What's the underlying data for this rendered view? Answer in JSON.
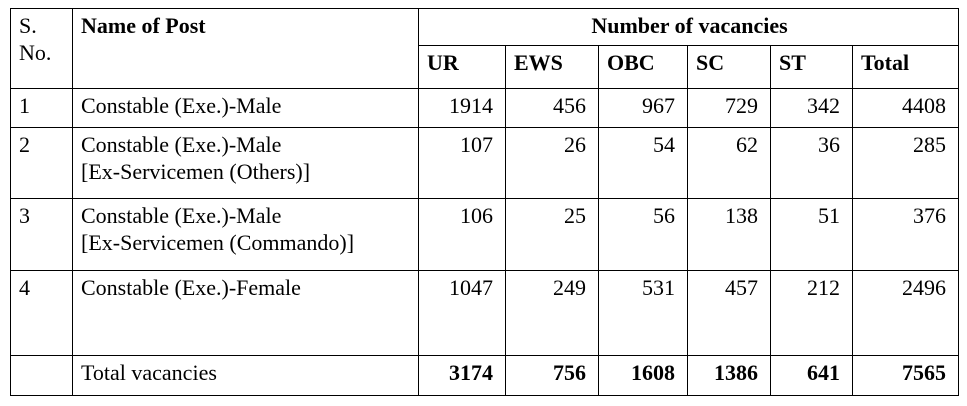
{
  "header": {
    "sno": "S. No.",
    "name": "Name of Post",
    "group": "Number of vacancies",
    "columns": [
      "UR",
      "EWS",
      "OBC",
      "SC",
      "ST",
      "Total"
    ]
  },
  "rows": [
    {
      "sno": "1",
      "name": [
        "Constable (Exe.)-Male"
      ],
      "values": [
        1914,
        456,
        967,
        729,
        342,
        4408
      ]
    },
    {
      "sno": "2",
      "name": [
        "Constable (Exe.)-Male",
        "[Ex-Servicemen (Others)]"
      ],
      "values": [
        107,
        26,
        54,
        62,
        36,
        285
      ]
    },
    {
      "sno": "3",
      "name": [
        "Constable (Exe.)-Male",
        "[Ex-Servicemen (Commando)]"
      ],
      "values": [
        106,
        25,
        56,
        138,
        51,
        376
      ]
    },
    {
      "sno": "4",
      "name": [
        "Constable (Exe.)-Female"
      ],
      "values": [
        1047,
        249,
        531,
        457,
        212,
        2496
      ]
    }
  ],
  "total": {
    "label": "Total vacancies",
    "values": [
      3174,
      756,
      1608,
      1386,
      641,
      7565
    ]
  }
}
